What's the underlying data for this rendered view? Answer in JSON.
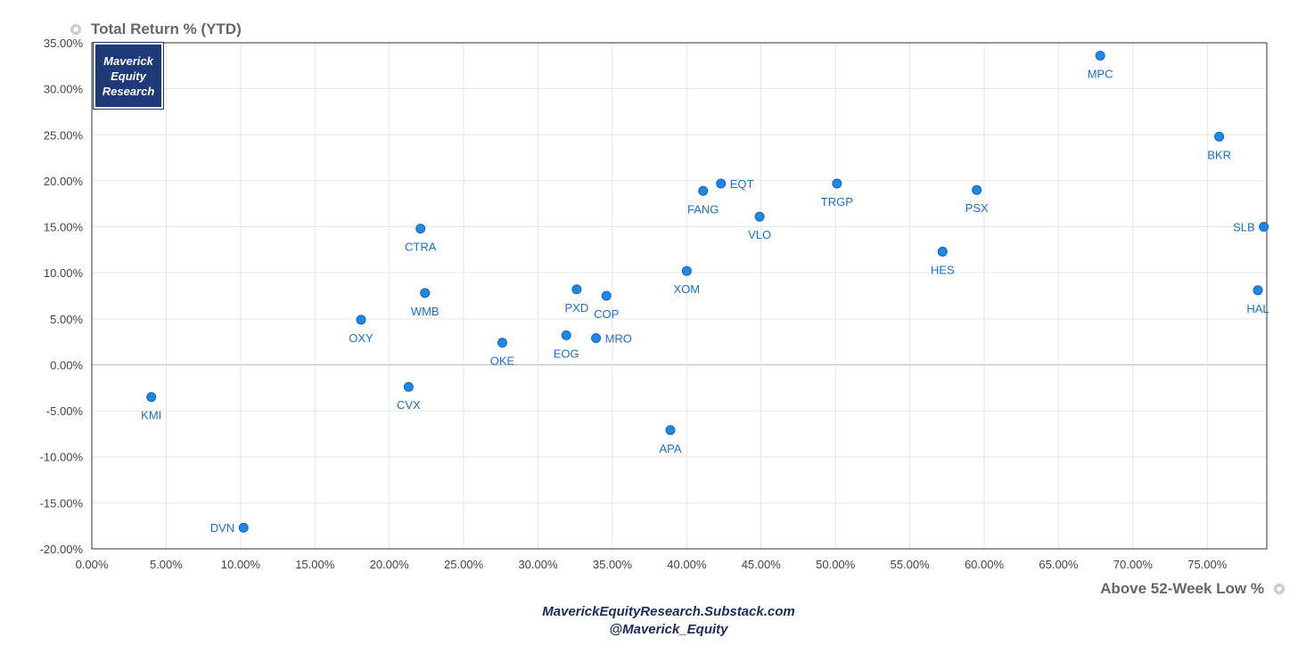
{
  "chart_data": {
    "type": "scatter",
    "title": "",
    "xlabel": "Above 52-Week Low %",
    "ylabel": "Total Return % (YTD)",
    "xlim": [
      0,
      79
    ],
    "ylim": [
      -20,
      35
    ],
    "x_ticks": [
      "0.00%",
      "5.00%",
      "10.00%",
      "15.00%",
      "20.00%",
      "25.00%",
      "30.00%",
      "35.00%",
      "40.00%",
      "45.00%",
      "50.00%",
      "55.00%",
      "60.00%",
      "65.00%",
      "70.00%",
      "75.00%"
    ],
    "y_ticks": [
      "35.00%",
      "30.00%",
      "25.00%",
      "20.00%",
      "15.00%",
      "10.00%",
      "5.00%",
      "0.00%",
      "-5.00%",
      "-10.00%",
      "-15.00%",
      "-20.00%"
    ],
    "grid": true,
    "color": "#1e88e5",
    "points": [
      {
        "label": "KMI",
        "x": 4.0,
        "y": -3.5,
        "pos": "below"
      },
      {
        "label": "DVN",
        "x": 10.2,
        "y": -17.7,
        "pos": "left"
      },
      {
        "label": "OXY",
        "x": 18.1,
        "y": 4.9,
        "pos": "below"
      },
      {
        "label": "CVX",
        "x": 21.3,
        "y": -2.4,
        "pos": "below"
      },
      {
        "label": "CTRA",
        "x": 22.1,
        "y": 14.8,
        "pos": "below"
      },
      {
        "label": "WMB",
        "x": 22.4,
        "y": 7.8,
        "pos": "below"
      },
      {
        "label": "OKE",
        "x": 27.6,
        "y": 2.4,
        "pos": "below"
      },
      {
        "label": "EOG",
        "x": 31.9,
        "y": 3.2,
        "pos": "below"
      },
      {
        "label": "PXD",
        "x": 32.6,
        "y": 8.2,
        "pos": "below"
      },
      {
        "label": "MRO",
        "x": 33.9,
        "y": 2.9,
        "pos": "right"
      },
      {
        "label": "COP",
        "x": 34.6,
        "y": 7.5,
        "pos": "below"
      },
      {
        "label": "APA",
        "x": 38.9,
        "y": -7.1,
        "pos": "below"
      },
      {
        "label": "XOM",
        "x": 40.0,
        "y": 10.2,
        "pos": "below"
      },
      {
        "label": "FANG",
        "x": 41.1,
        "y": 18.9,
        "pos": "below"
      },
      {
        "label": "EQT",
        "x": 42.3,
        "y": 19.7,
        "pos": "right"
      },
      {
        "label": "VLO",
        "x": 44.9,
        "y": 16.1,
        "pos": "below"
      },
      {
        "label": "TRGP",
        "x": 50.1,
        "y": 19.7,
        "pos": "below"
      },
      {
        "label": "HES",
        "x": 57.2,
        "y": 12.3,
        "pos": "below"
      },
      {
        "label": "PSX",
        "x": 59.5,
        "y": 19.0,
        "pos": "below"
      },
      {
        "label": "MPC",
        "x": 67.8,
        "y": 33.6,
        "pos": "below"
      },
      {
        "label": "BKR",
        "x": 75.8,
        "y": 24.8,
        "pos": "below"
      },
      {
        "label": "HAL",
        "x": 78.4,
        "y": 8.1,
        "pos": "below"
      },
      {
        "label": "SLB",
        "x": 78.8,
        "y": 15.0,
        "pos": "left"
      }
    ]
  },
  "badge": {
    "line1": "Maverick",
    "line2": "Equity",
    "line3": "Research"
  },
  "footer": {
    "line1": "MaverickEquityResearch.Substack.com",
    "line2": "@Maverick_Equity"
  },
  "icons": {
    "y_axis_icon": "gear-icon",
    "x_axis_icon": "gear-icon"
  }
}
